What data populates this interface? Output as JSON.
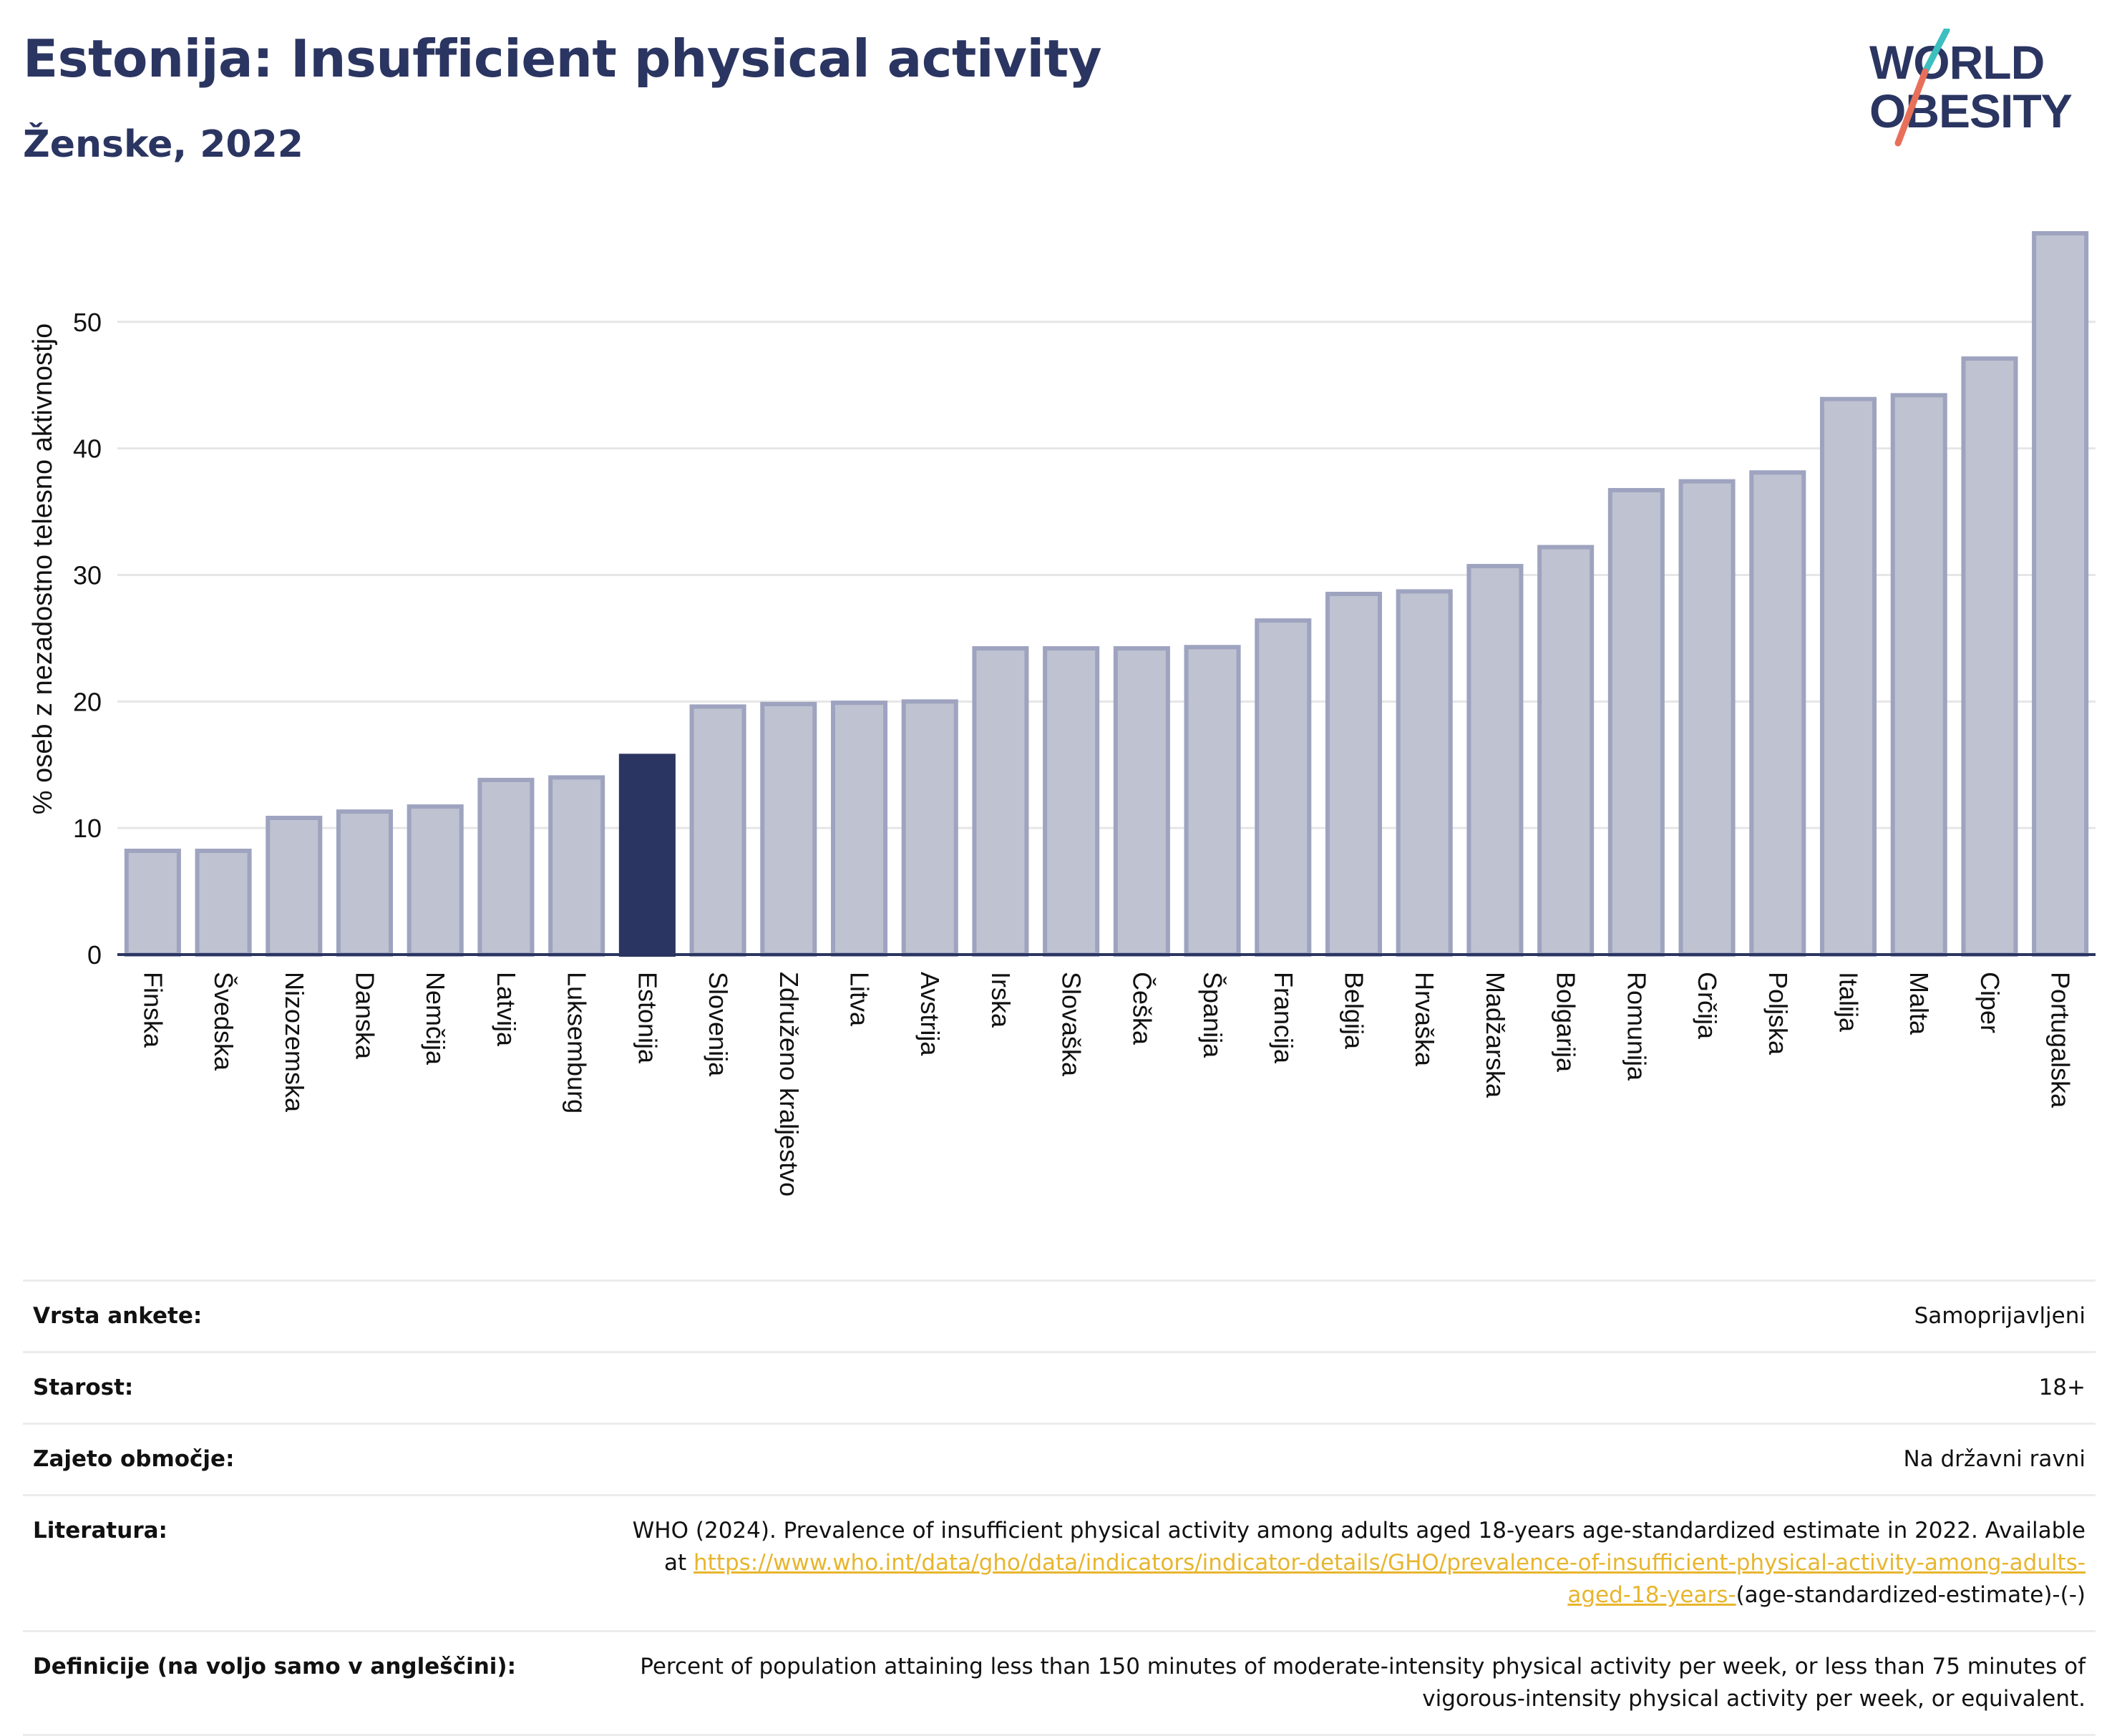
{
  "header": {
    "title": "Estonija: Insufficient physical activity",
    "subtitle": "Ženske, 2022"
  },
  "logo": {
    "line1": "WORLD",
    "line2": "OBESITY",
    "colors": [
      "#2b3561",
      "#3cbfbf",
      "#e8705a"
    ]
  },
  "colors": {
    "bar": "#bfc2d0",
    "bar_edge": "#9ea3bf",
    "highlight": "#2b3561",
    "grid": "#e6e6e6",
    "axis": "#2b3561"
  },
  "chart_data": {
    "type": "bar",
    "ylabel": "% oseb z nezadostno telesno aktivnostjo",
    "ylim": [
      0,
      57
    ],
    "yticks": [
      0,
      10,
      20,
      30,
      40,
      50
    ],
    "grid": true,
    "highlight": "Estonija",
    "categories": [
      "Finska",
      "Švedska",
      "Nizozemska",
      "Danska",
      "Nemčija",
      "Latvija",
      "Luksemburg",
      "Estonija",
      "Slovenija",
      "Združeno kraljestvo",
      "Litva",
      "Avstrija",
      "Irska",
      "Slovaška",
      "Češka",
      "Španija",
      "Francija",
      "Belgija",
      "Hrvaška",
      "Madžarska",
      "Bolgarija",
      "Romunija",
      "Grčija",
      "Poljska",
      "Italija",
      "Malta",
      "Ciper",
      "Portugalska"
    ],
    "values": [
      8.2,
      8.2,
      10.8,
      11.3,
      11.7,
      13.8,
      14.0,
      15.7,
      19.6,
      19.8,
      19.9,
      20.0,
      24.2,
      24.2,
      24.2,
      24.3,
      26.4,
      28.5,
      28.7,
      30.7,
      32.2,
      36.7,
      37.4,
      38.1,
      43.9,
      44.2,
      47.1,
      57.0
    ]
  },
  "info": {
    "survey_label": "Vrsta ankete:",
    "survey_value": "Samoprijavljeni",
    "age_label": "Starost:",
    "age_value": "18+",
    "coverage_label": "Zajeto območje:",
    "coverage_value": "Na državni ravni",
    "literature_label": "Literatura:",
    "literature_text": "WHO (2024). Prevalence of insufficient physical activity among adults aged 18-years age-standardized estimate in 2022. Available at",
    "literature_link": "https://www.who.int/data/gho/data/indicators/indicator-details/GHO/prevalence-of-insufficient-physical-activity-among-adults-aged-18-years-",
    "literature_suffix": "(age-standardized-estimate)-(-)",
    "definition_label": "Definicije (na voljo samo v angleščini):",
    "definition_text": "Percent of population attaining less than 150 minutes of moderate-intensity physical activity per week, or less than 75 minutes of vigorous-intensity physical activity per week, or equivalent."
  }
}
